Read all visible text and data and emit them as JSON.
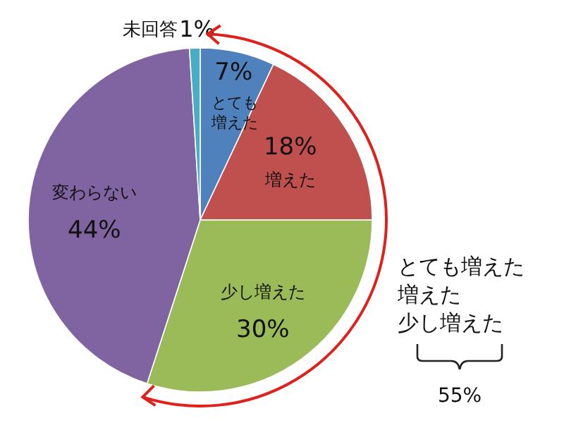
{
  "chart_data": {
    "type": "pie",
    "categories": [
      "とても増えた",
      "増えた",
      "少し増えた",
      "変わらない",
      "未回答"
    ],
    "values": [
      7,
      18,
      30,
      44,
      1
    ],
    "value_labels": [
      "7%",
      "18%",
      "30%",
      "44%",
      "1%"
    ],
    "colors": [
      "#4f81bd",
      "#c0504d",
      "#9bbb59",
      "#8064a2",
      "#4bacc6"
    ],
    "annotations": [
      "とても増えた",
      "増えた",
      "少し増えた",
      "55%"
    ]
  }
}
